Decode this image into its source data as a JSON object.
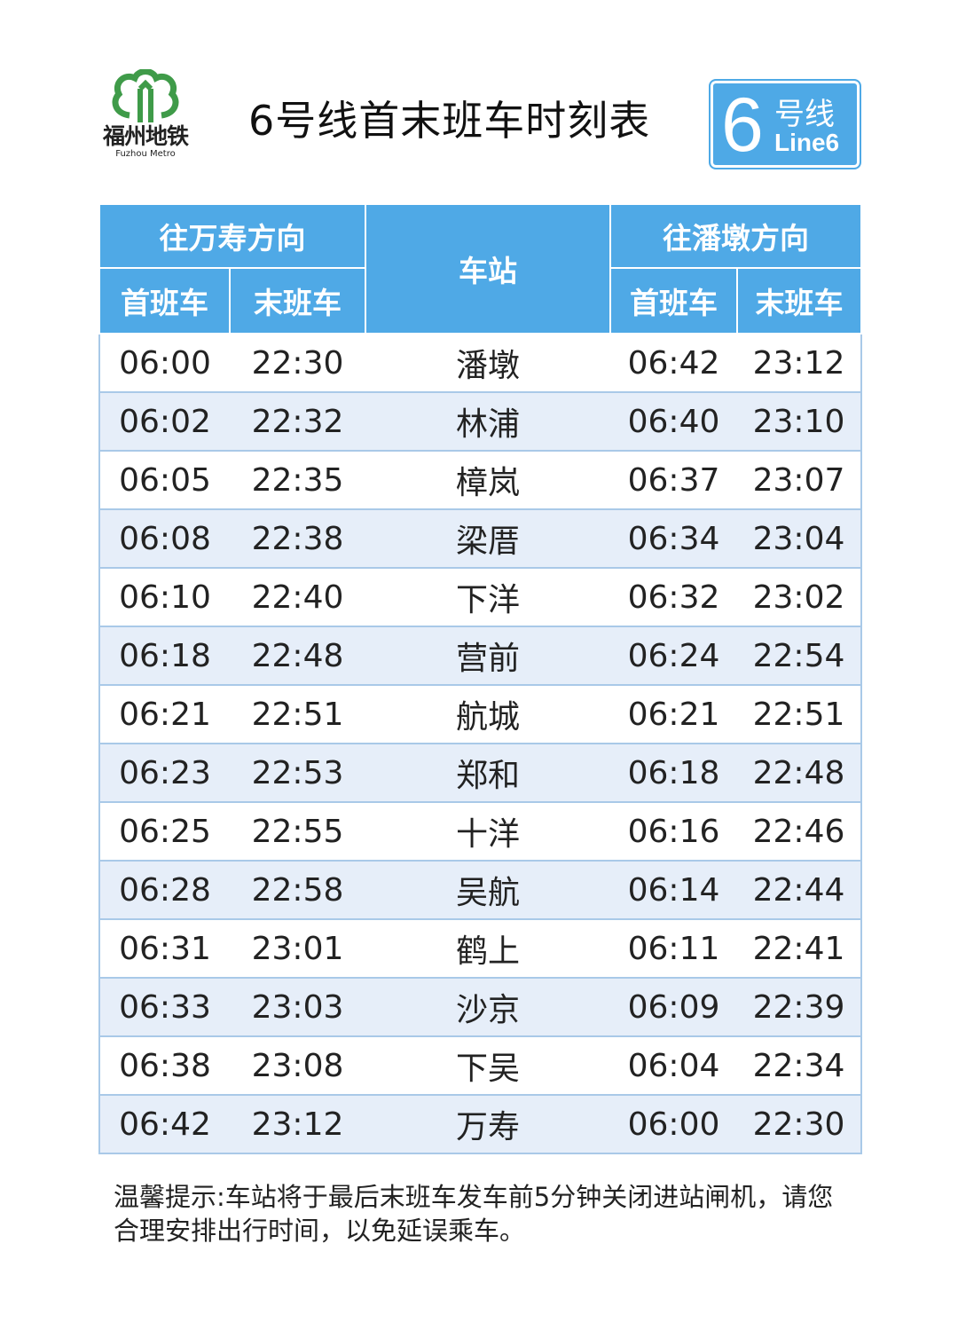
{
  "logo": {
    "name_cn": "福州地铁",
    "name_en": "Fuzhou Metro",
    "color": "#3f9b49"
  },
  "title": "6号线首末班车时刻表",
  "badge": {
    "number": "6",
    "label_cn": "号线",
    "label_en": "Line6",
    "color": "#4ea9e6"
  },
  "table": {
    "dir1": "往万寿方向",
    "dir2": "往潘墩方向",
    "station_header": "车站",
    "first": "首班车",
    "last": "末班车",
    "rows": [
      {
        "s": "潘墩",
        "a1": "06:00",
        "a2": "22:30",
        "b1": "06:42",
        "b2": "23:12"
      },
      {
        "s": "林浦",
        "a1": "06:02",
        "a2": "22:32",
        "b1": "06:40",
        "b2": "23:10"
      },
      {
        "s": "樟岚",
        "a1": "06:05",
        "a2": "22:35",
        "b1": "06:37",
        "b2": "23:07"
      },
      {
        "s": "梁厝",
        "a1": "06:08",
        "a2": "22:38",
        "b1": "06:34",
        "b2": "23:04"
      },
      {
        "s": "下洋",
        "a1": "06:10",
        "a2": "22:40",
        "b1": "06:32",
        "b2": "23:02"
      },
      {
        "s": "营前",
        "a1": "06:18",
        "a2": "22:48",
        "b1": "06:24",
        "b2": "22:54"
      },
      {
        "s": "航城",
        "a1": "06:21",
        "a2": "22:51",
        "b1": "06:21",
        "b2": "22:51"
      },
      {
        "s": "郑和",
        "a1": "06:23",
        "a2": "22:53",
        "b1": "06:18",
        "b2": "22:48"
      },
      {
        "s": "十洋",
        "a1": "06:25",
        "a2": "22:55",
        "b1": "06:16",
        "b2": "22:46"
      },
      {
        "s": "吴航",
        "a1": "06:28",
        "a2": "22:58",
        "b1": "06:14",
        "b2": "22:44"
      },
      {
        "s": "鹤上",
        "a1": "06:31",
        "a2": "23:01",
        "b1": "06:11",
        "b2": "22:41"
      },
      {
        "s": "沙京",
        "a1": "06:33",
        "a2": "23:03",
        "b1": "06:09",
        "b2": "22:39"
      },
      {
        "s": "下吴",
        "a1": "06:38",
        "a2": "23:08",
        "b1": "06:04",
        "b2": "22:34"
      },
      {
        "s": "万寿",
        "a1": "06:42",
        "a2": "23:12",
        "b1": "06:00",
        "b2": "22:30"
      }
    ]
  },
  "notice": "温馨提示:车站将于最后末班车发车前5分钟关闭进站闸机，请您合理安排出行时间，以免延误乘车。"
}
